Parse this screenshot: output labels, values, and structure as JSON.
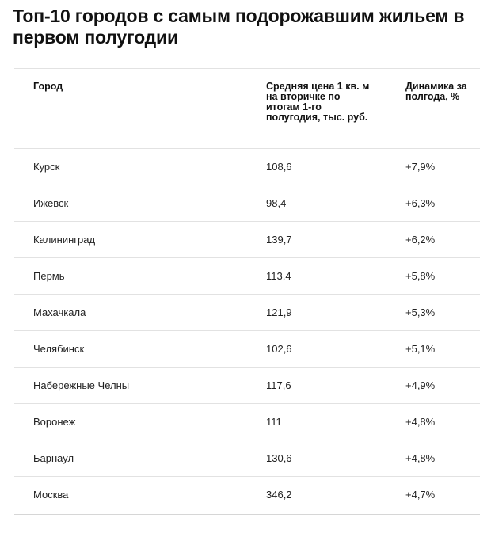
{
  "title": "Топ-10 городов с самым подорожавшим жильем в первом полугодии",
  "table": {
    "headers": [
      "Город",
      "Средняя цена 1 кв. м на вторичке по итогам 1-го полугодия, тыс. руб.",
      "Динамика за полгода, %"
    ],
    "rows": [
      [
        "Курск",
        "108,6",
        "+7,9%"
      ],
      [
        "Ижевск",
        "98,4",
        "+6,3%"
      ],
      [
        "Калининград",
        "139,7",
        "+6,2%"
      ],
      [
        "Пермь",
        "113,4",
        "+5,8%"
      ],
      [
        "Махачкала",
        "121,9",
        "+5,3%"
      ],
      [
        "Челябинск",
        "102,6",
        "+5,1%"
      ],
      [
        "Набережные Челны",
        "117,6",
        "+4,9%"
      ],
      [
        "Воронеж",
        "111",
        "+4,8%"
      ],
      [
        "Барнаул",
        "130,6",
        "+4,8%"
      ],
      [
        "Москва",
        "346,2",
        "+4,7%"
      ]
    ]
  }
}
